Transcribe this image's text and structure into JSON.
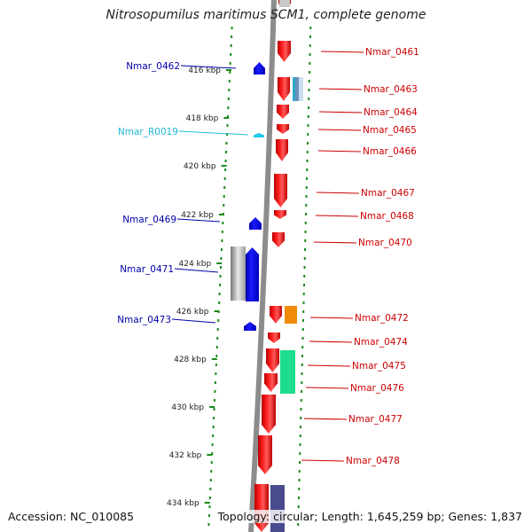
{
  "title": "Nitrosopumilus maritimus SCM1, complete genome",
  "footer": {
    "accession": "Accession: NC_010085",
    "summary": "Topology: circular; Length: 1,645,259 bp; Genes: 1,837"
  },
  "colors": {
    "forward_gene": "#e8000b",
    "reverse_gene": "#0000ee",
    "rna_gene": "#1ec8e6",
    "backbone": "#888888",
    "dots": "#1a8a1a",
    "forward_label": "#cc0000",
    "reverse_label": "#0000aa",
    "rna_label": "#1fb8d8"
  },
  "ticks": [
    "416 kbp",
    "418 kbp",
    "420 kbp",
    "422 kbp",
    "424 kbp",
    "426 kbp",
    "428 kbp",
    "430 kbp",
    "432 kbp",
    "434 kbp"
  ],
  "forward_labels": [
    "Nmar_0461",
    "Nmar_0463",
    "Nmar_0464",
    "Nmar_0465",
    "Nmar_0466",
    "Nmar_0467",
    "Nmar_0468",
    "Nmar_0470",
    "Nmar_0472",
    "Nmar_0474",
    "Nmar_0475",
    "Nmar_0476",
    "Nmar_0477",
    "Nmar_0478"
  ],
  "reverse_labels": [
    "Nmar_0462",
    "Nmar_R0019",
    "Nmar_0469",
    "Nmar_0471",
    "Nmar_0473"
  ]
}
